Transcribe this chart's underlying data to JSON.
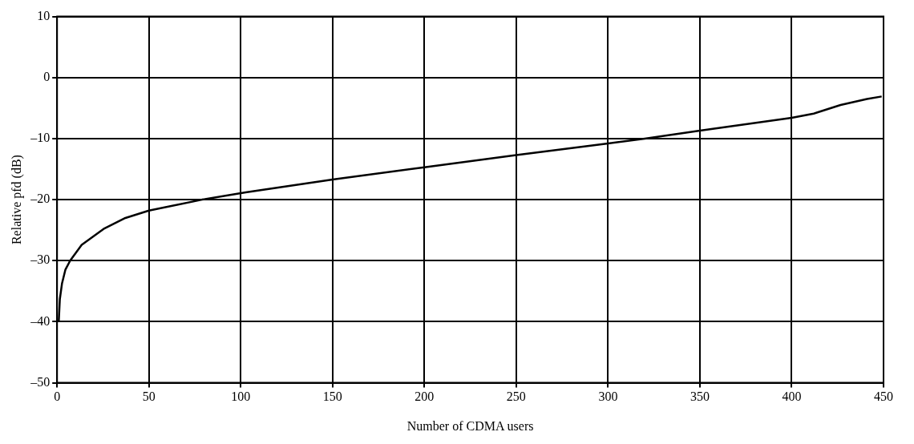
{
  "chart_data": {
    "type": "line",
    "xlabel": "Number of CDMA users",
    "ylabel": "Relative pfd (dB)",
    "xlim": [
      0,
      450
    ],
    "xticks": [
      0,
      50,
      100,
      150,
      200,
      250,
      300,
      350,
      400,
      450
    ],
    "ylim": [
      -50,
      10
    ],
    "yticks": [
      {
        "value": -50,
        "label": "–50"
      },
      {
        "value": -40,
        "label": "–40"
      },
      {
        "value": -30,
        "label": "–30"
      },
      {
        "value": -20,
        "label": "–20"
      },
      {
        "value": -10,
        "label": "–10"
      },
      0,
      10
    ],
    "grid": true,
    "legend": false,
    "marker": "none",
    "line_style": "solid",
    "series": [
      {
        "color": "#000000",
        "x": [
          0.9,
          1.5,
          2.7,
          4.5,
          7.1,
          13.4,
          25.3,
          37.2,
          50,
          78.9,
          102.7,
          150,
          200,
          250,
          300,
          320,
          350,
          400,
          412,
          426.6,
          441,
          449
        ],
        "values": [
          -40,
          -36.3,
          -33.7,
          -31.5,
          -30,
          -27.4,
          -24.8,
          -23,
          -21.8,
          -20,
          -18.8,
          -16.7,
          -14.7,
          -12.7,
          -10.8,
          -10,
          -8.7,
          -6.6,
          -5.9,
          -4.5,
          -3.5,
          -3.1
        ]
      }
    ]
  }
}
